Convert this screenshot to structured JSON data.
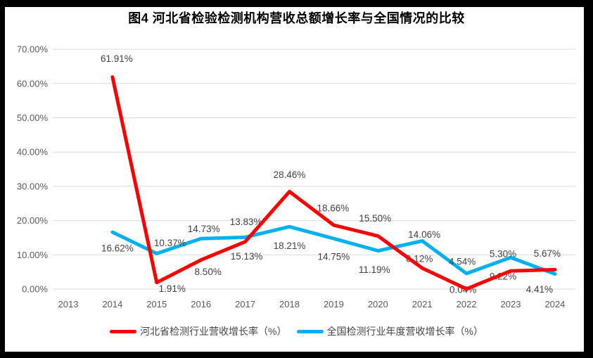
{
  "title": "图4 河北省检验检测机构营收总额增长率与全国情况的比较",
  "legend": {
    "hebei_label": "河北省检测行业营收增长率（%）",
    "national_label": "全国检测行业年度营收增长率（%）"
  },
  "colors": {
    "hebei_line": "#FF0000",
    "national_line": "#00B0F0",
    "gridline": "#D9D9D9",
    "axis_text": "#595959",
    "data_label_text": "#404040",
    "legend_text": "#444444",
    "title_text": "#000000",
    "frame": "#000000",
    "background": "#FFFFFF"
  },
  "chart_data": {
    "type": "line",
    "title": "图4 河北省检验检测机构营收总额增长率与全国情况的比较",
    "categories": [
      "2013",
      "2014",
      "2015",
      "2016",
      "2017",
      "2018",
      "2019",
      "2020",
      "2021",
      "2022",
      "2023",
      "2024"
    ],
    "series": [
      {
        "name": "河北省检测行业营收增长率（%）",
        "color": "#FF0000",
        "values": [
          null,
          61.91,
          1.91,
          8.5,
          13.83,
          28.46,
          18.66,
          15.5,
          6.12,
          0.04,
          5.3,
          5.67
        ]
      },
      {
        "name": "全国检测行业年度营收增长率（%）",
        "color": "#00B0F0",
        "values": [
          null,
          16.62,
          10.37,
          14.73,
          15.13,
          18.21,
          14.75,
          11.19,
          14.06,
          4.54,
          9.22,
          4.41
        ]
      }
    ],
    "data_labels": true,
    "label_format": "0.00%",
    "y_axis": {
      "min": 0,
      "max": 70,
      "step": 10,
      "tick_labels": [
        "0.00%",
        "10.00%",
        "20.00%",
        "30.00%",
        "40.00%",
        "50.00%",
        "60.00%",
        "70.00%"
      ]
    },
    "x_axis": {
      "tick_labels": [
        "2013",
        "2014",
        "2015",
        "2016",
        "2017",
        "2018",
        "2019",
        "2020",
        "2021",
        "2022",
        "2023",
        "2024"
      ]
    },
    "grid": true,
    "legend_position": "bottom",
    "label_offsets": {
      "hebei": [
        null,
        [
          6,
          -26
        ],
        [
          22,
          9
        ],
        [
          10,
          17
        ],
        [
          1,
          -28
        ],
        [
          0,
          -24
        ],
        [
          -1,
          -24
        ],
        [
          -4,
          -25
        ],
        [
          -4,
          -13
        ],
        [
          -5,
          1
        ],
        [
          -11,
          -24
        ],
        [
          -11,
          -23
        ]
      ],
      "national": [
        null,
        [
          7,
          23
        ],
        [
          19,
          -15
        ],
        [
          4,
          -14
        ],
        [
          2,
          27
        ],
        [
          0,
          27
        ],
        [
          0,
          26
        ],
        [
          -5,
          27
        ],
        [
          3,
          -9
        ],
        [
          -6,
          -17
        ],
        [
          -11,
          27
        ],
        [
          -22,
          22
        ]
      ]
    }
  }
}
